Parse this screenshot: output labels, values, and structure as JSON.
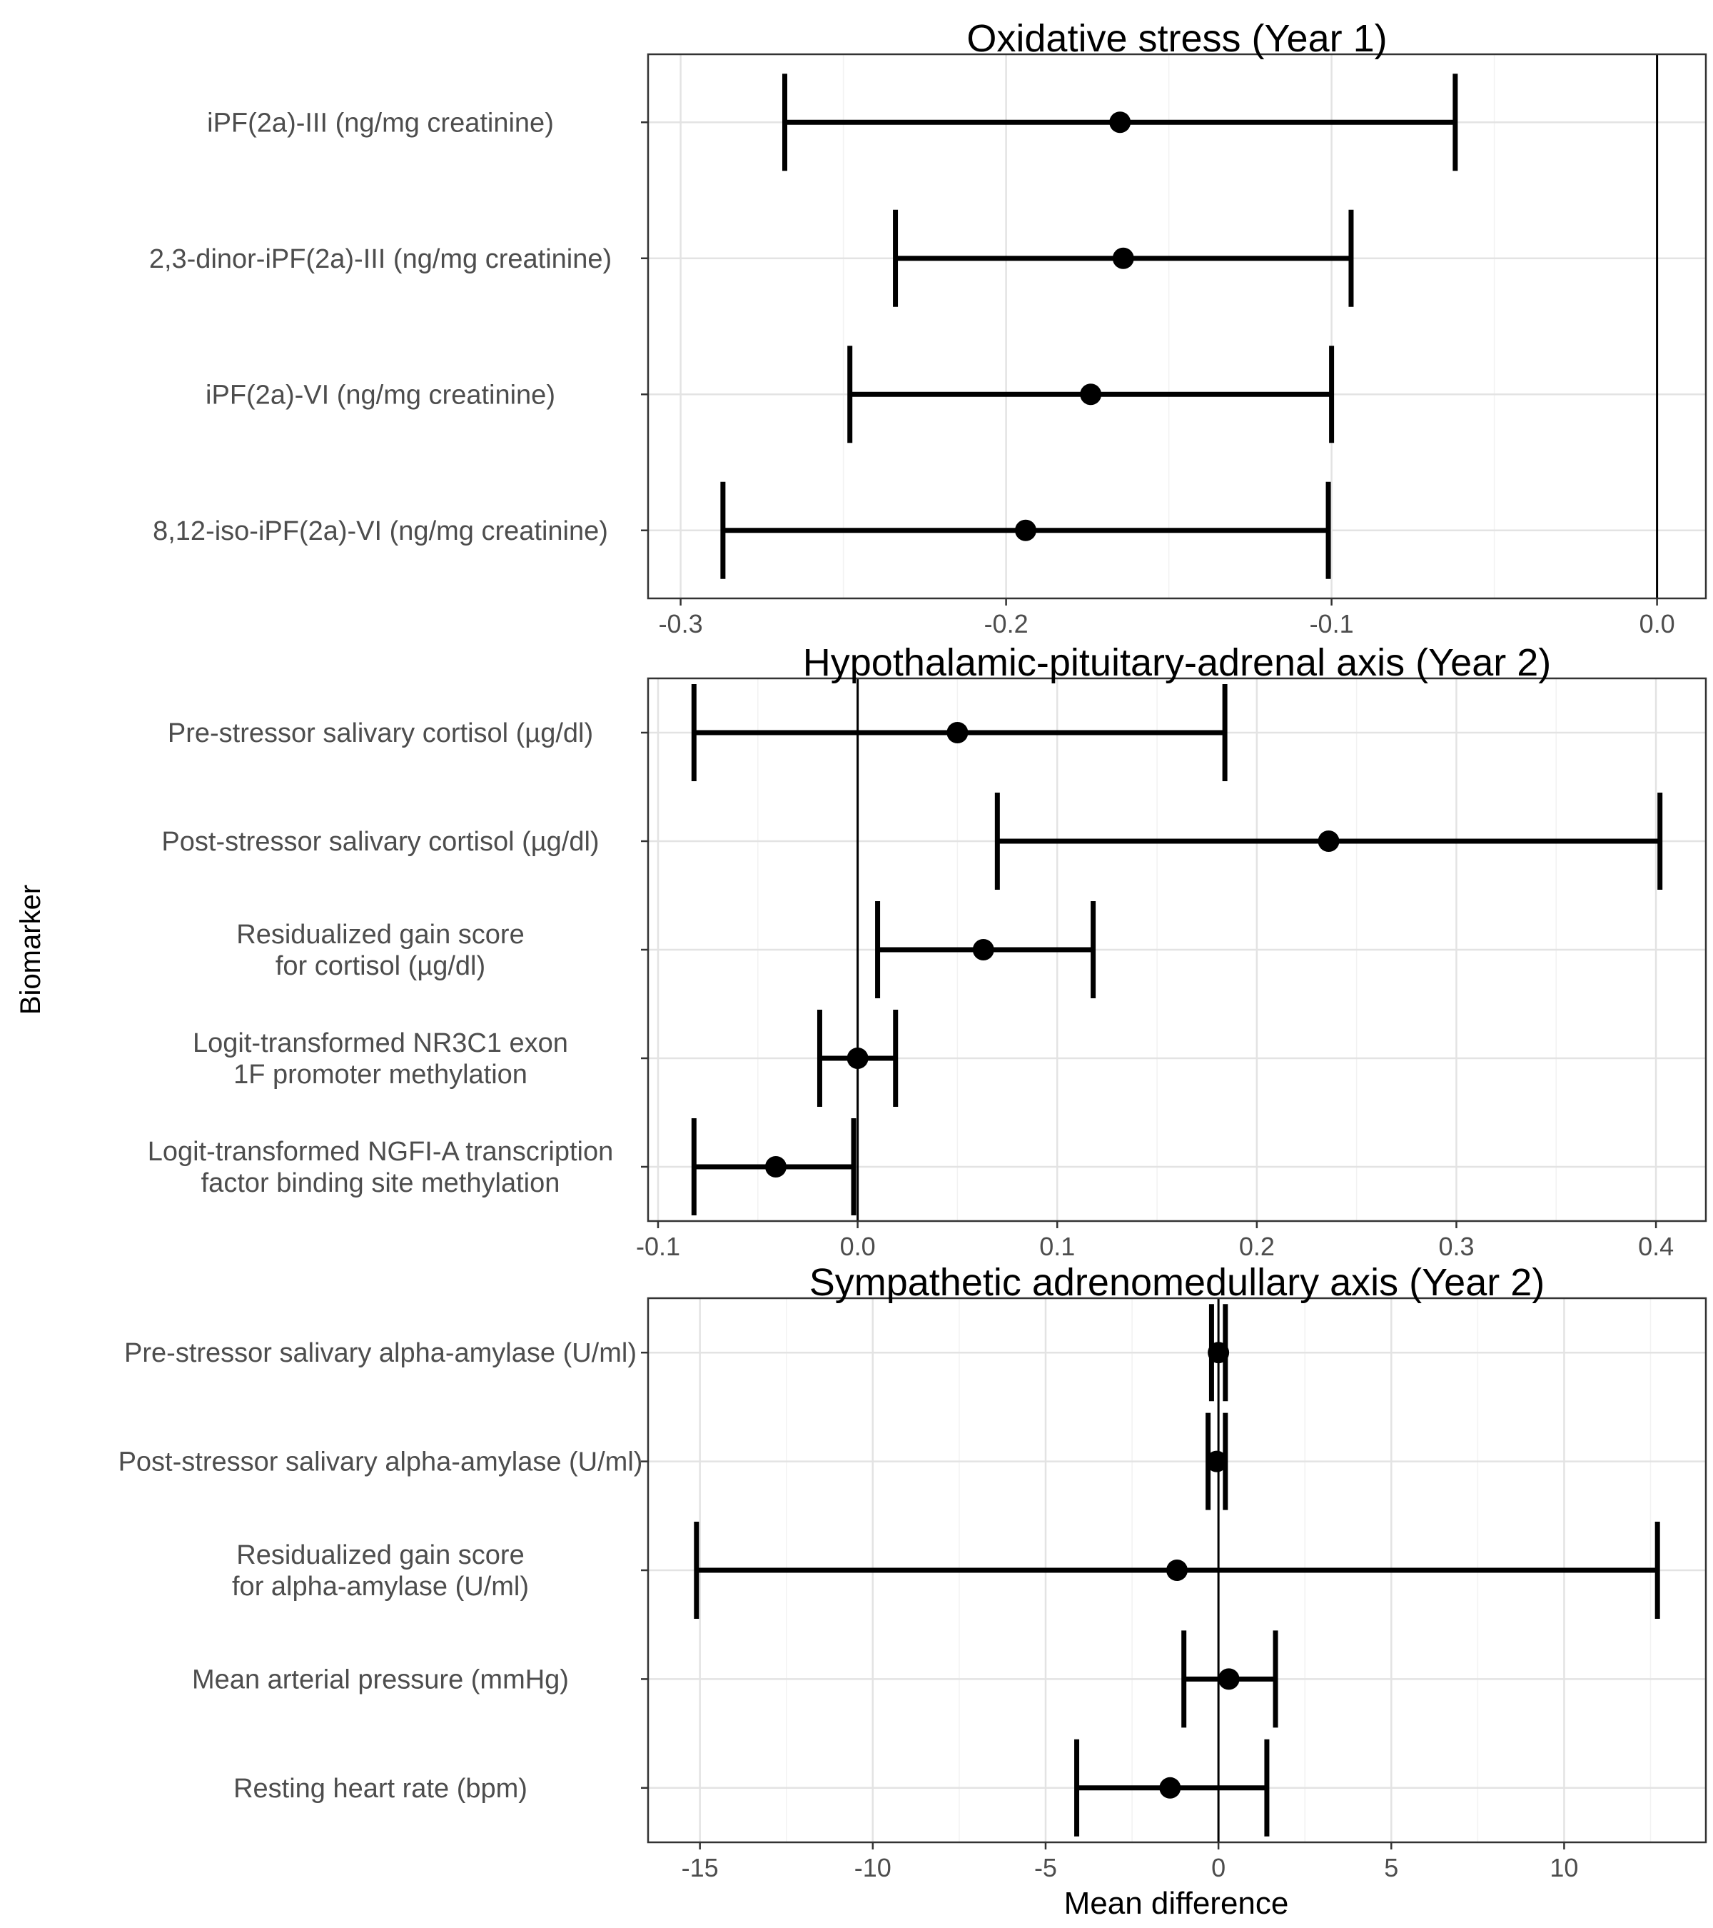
{
  "y_axis_label": "Biomarker",
  "x_axis_label": "Mean difference",
  "chart_data": [
    {
      "type": "forest",
      "title": "Oxidative stress (Year 1)",
      "xlabel": "",
      "ylabel": "Biomarker",
      "xlim": [
        -0.31,
        0.015
      ],
      "xticks": [
        -0.3,
        -0.2,
        -0.1,
        0.0
      ],
      "xtick_labels": [
        "-0.3",
        "-0.2",
        "-0.1",
        "0.0"
      ],
      "reference_line": 0,
      "grid": true,
      "rows": [
        {
          "label": [
            "iPF(2a)-III (ng/mg creatinine)"
          ],
          "estimate": -0.165,
          "lower": -0.268,
          "upper": -0.062
        },
        {
          "label": [
            "2,3-dinor-iPF(2a)-III (ng/mg creatinine)"
          ],
          "estimate": -0.164,
          "lower": -0.234,
          "upper": -0.094
        },
        {
          "label": [
            "iPF(2a)-VI (ng/mg creatinine)"
          ],
          "estimate": -0.174,
          "lower": -0.248,
          "upper": -0.1
        },
        {
          "label": [
            "8,12-iso-iPF(2a)-VI (ng/mg creatinine)"
          ],
          "estimate": -0.194,
          "lower": -0.287,
          "upper": -0.101
        }
      ]
    },
    {
      "type": "forest",
      "title": "Hypothalamic-pituitary-adrenal axis (Year 2)",
      "xlabel": "",
      "ylabel": "Biomarker",
      "xlim": [
        -0.105,
        0.425
      ],
      "xticks": [
        -0.1,
        0.0,
        0.1,
        0.2,
        0.3,
        0.4
      ],
      "xtick_labels": [
        "-0.1",
        "0.0",
        "0.1",
        "0.2",
        "0.3",
        "0.4"
      ],
      "reference_line": 0,
      "grid": true,
      "rows": [
        {
          "label": [
            "Pre-stressor salivary cortisol (µg/dl)"
          ],
          "estimate": 0.05,
          "lower": -0.082,
          "upper": 0.184
        },
        {
          "label": [
            "Post-stressor salivary cortisol (µg/dl)"
          ],
          "estimate": 0.236,
          "lower": 0.07,
          "upper": 0.402
        },
        {
          "label": [
            "Residualized gain score",
            "for cortisol (µg/dl)"
          ],
          "estimate": 0.063,
          "lower": 0.01,
          "upper": 0.118
        },
        {
          "label": [
            "Logit-transformed NR3C1 exon",
            "1F promoter methylation"
          ],
          "estimate": 0.0,
          "lower": -0.019,
          "upper": 0.019
        },
        {
          "label": [
            "Logit-transformed NGFI-A transcription",
            "factor binding site methylation"
          ],
          "estimate": -0.041,
          "lower": -0.082,
          "upper": -0.002
        }
      ]
    },
    {
      "type": "forest",
      "title": "Sympathetic adrenomedullary axis (Year 2)",
      "xlabel": "Mean difference",
      "ylabel": "Biomarker",
      "xlim": [
        -16.5,
        14.1
      ],
      "xticks": [
        -15,
        -10,
        -5,
        0,
        5,
        10
      ],
      "xtick_labels": [
        "-15",
        "-10",
        "-5",
        "0",
        "5",
        "10"
      ],
      "reference_line": 0,
      "grid": true,
      "rows": [
        {
          "label": [
            "Pre-stressor salivary alpha-amylase (U/ml)"
          ],
          "estimate": 0.0,
          "lower": -0.2,
          "upper": 0.2
        },
        {
          "label": [
            "Post-stressor salivary alpha-amylase (U/ml)"
          ],
          "estimate": -0.05,
          "lower": -0.3,
          "upper": 0.2
        },
        {
          "label": [
            "Residualized gain score",
            "for alpha-amylase (U/ml)"
          ],
          "estimate": -1.2,
          "lower": -15.1,
          "upper": 12.7
        },
        {
          "label": [
            "Mean arterial pressure (mmHg)"
          ],
          "estimate": 0.3,
          "lower": -1.0,
          "upper": 1.65
        },
        {
          "label": [
            "Resting heart rate (bpm)"
          ],
          "estimate": -1.4,
          "lower": -4.1,
          "upper": 1.4
        }
      ]
    }
  ]
}
